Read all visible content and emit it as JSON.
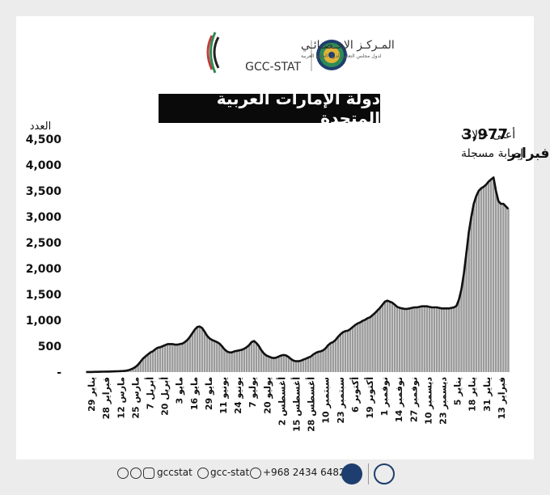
{
  "header": {
    "org_arabic": "المـركـز الإحـصـائـي",
    "org_sub_arabic": "لدول مجلس التعاون لدول الخليج العربية",
    "org_english": "GCC-STAT"
  },
  "annotation": {
    "max_value": "3,977",
    "max_label": "أعلى حالات",
    "date_value": "3 فبراير",
    "date_label": "إصابة مسجلة"
  },
  "footer": {
    "social_handle": "gccstat",
    "social_handle2": "gcc-stat",
    "phone": "+968 2434 6482"
  },
  "colors": {
    "bar": "#9a9a9a",
    "line": "#111111",
    "title_bg": "#0a0a0a"
  },
  "chart_data": {
    "type": "bar",
    "title": "دولة الإمارات العربية المتحدة",
    "ylabel": "العدد",
    "xlabel": "",
    "ylim": [
      0,
      4500
    ],
    "yticks": [
      0,
      500,
      1000,
      1500,
      2000,
      2500,
      3000,
      3500,
      4000,
      4500
    ],
    "ytick_labels": [
      "-",
      "500",
      "1,000",
      "1,500",
      "2,000",
      "2,500",
      "3,000",
      "3,500",
      "4,000",
      "4,500"
    ],
    "grid": false,
    "xtick_labels": [
      "29 يناير",
      "28 فبراير",
      "12 مارس",
      "25 مارس",
      "7 أبريل",
      "20 أبريل",
      "3 مايو",
      "16 مايو",
      "29 مايو",
      "11 يونيو",
      "24 يونيو",
      "7 يوليو",
      "20 يوليو",
      "2 أغسطس",
      "15 أغسطس",
      "28 أغسطس",
      "10 سبتمبر",
      "23 سبتمبر",
      "6 أكتوبر",
      "19 أكتوبر",
      "1 نوفمبر",
      "14 نوفمبر",
      "27 نوفمبر",
      "10 ديسمبر",
      "23 ديسمبر",
      "5 يناير",
      "18 يناير",
      "31 يناير",
      "13 فبراير"
    ],
    "series": [
      {
        "kind": "bars",
        "values": [
          2,
          2,
          2,
          3,
          4,
          5,
          7,
          8,
          9,
          10,
          11,
          12,
          14,
          16,
          18,
          20,
          25,
          35,
          50,
          70,
          100,
          140,
          200,
          260,
          300,
          340,
          380,
          400,
          440,
          470,
          480,
          500,
          520,
          540,
          540,
          540,
          530,
          530,
          540,
          550,
          580,
          620,
          680,
          750,
          820,
          870,
          880,
          850,
          780,
          700,
          650,
          620,
          600,
          580,
          550,
          500,
          440,
          400,
          380,
          380,
          400,
          410,
          420,
          430,
          450,
          480,
          520,
          580,
          600,
          560,
          500,
          420,
          360,
          320,
          300,
          280,
          270,
          280,
          300,
          320,
          330,
          320,
          290,
          250,
          220,
          210,
          210,
          220,
          240,
          260,
          280,
          300,
          340,
          370,
          390,
          400,
          420,
          460,
          520,
          560,
          580,
          620,
          680,
          730,
          770,
          790,
          800,
          830,
          870,
          910,
          940,
          960,
          990,
          1010,
          1040,
          1060,
          1100,
          1140,
          1190,
          1240,
          1300,
          1360,
          1380,
          1360,
          1340,
          1300,
          1260,
          1240,
          1230,
          1220,
          1220,
          1230,
          1240,
          1250,
          1250,
          1260,
          1270,
          1270,
          1270,
          1260,
          1250,
          1250,
          1250,
          1240,
          1230,
          1230,
          1230,
          1230,
          1240,
          1250,
          1280,
          1400,
          1600,
          1900,
          2300,
          2700,
          3000,
          3250,
          3400,
          3500,
          3550,
          3580,
          3620,
          3680,
          3720,
          3760,
          3500,
          3300,
          3250,
          3250,
          3200,
          3150
        ]
      },
      {
        "kind": "line",
        "values": [
          2,
          2,
          2,
          3,
          4,
          5,
          7,
          8,
          9,
          10,
          11,
          12,
          14,
          16,
          18,
          20,
          25,
          35,
          50,
          70,
          100,
          140,
          200,
          260,
          300,
          340,
          380,
          400,
          440,
          470,
          480,
          500,
          520,
          540,
          540,
          540,
          530,
          530,
          540,
          550,
          580,
          620,
          680,
          750,
          820,
          870,
          880,
          850,
          780,
          700,
          650,
          620,
          600,
          580,
          550,
          500,
          440,
          400,
          380,
          380,
          400,
          410,
          420,
          430,
          450,
          480,
          520,
          580,
          600,
          560,
          500,
          420,
          360,
          320,
          300,
          280,
          270,
          280,
          300,
          320,
          330,
          320,
          290,
          250,
          220,
          210,
          210,
          220,
          240,
          260,
          280,
          300,
          340,
          370,
          390,
          400,
          420,
          460,
          520,
          560,
          580,
          620,
          680,
          730,
          770,
          790,
          800,
          830,
          870,
          910,
          940,
          960,
          990,
          1010,
          1040,
          1060,
          1100,
          1140,
          1190,
          1240,
          1300,
          1360,
          1380,
          1360,
          1340,
          1300,
          1260,
          1240,
          1230,
          1220,
          1220,
          1230,
          1240,
          1250,
          1250,
          1260,
          1270,
          1270,
          1270,
          1260,
          1250,
          1250,
          1250,
          1240,
          1230,
          1230,
          1230,
          1230,
          1240,
          1250,
          1280,
          1400,
          1600,
          1900,
          2300,
          2700,
          3000,
          3250,
          3400,
          3500,
          3550,
          3580,
          3620,
          3680,
          3720,
          3760,
          3500,
          3300,
          3250,
          3250,
          3200,
          3150
        ]
      }
    ]
  }
}
